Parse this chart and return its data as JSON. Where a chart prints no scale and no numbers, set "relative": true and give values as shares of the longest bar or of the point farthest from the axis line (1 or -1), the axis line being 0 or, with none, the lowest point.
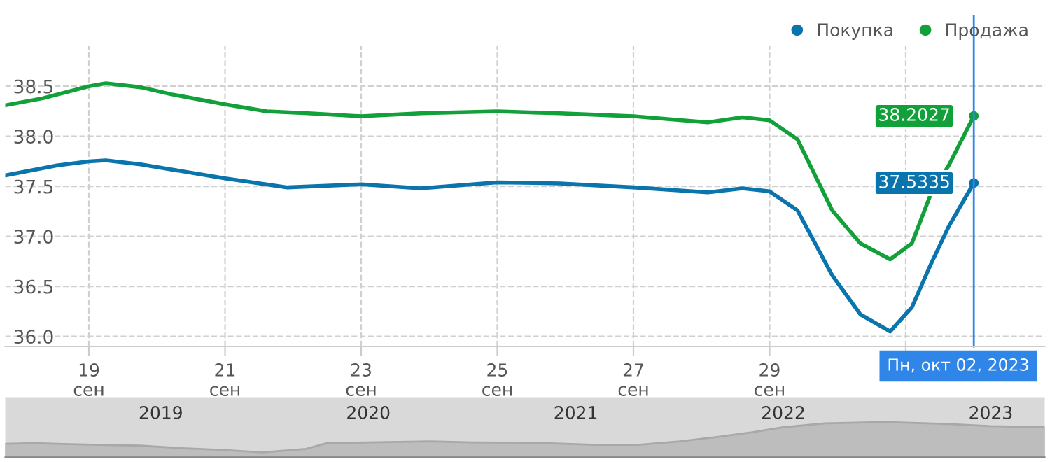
{
  "chart_data": [
    {
      "type": "line",
      "xlim": [
        "2023-09-17T18:30",
        "2023-10-03T01:00"
      ],
      "ylim": [
        35.9,
        38.9
      ],
      "xticks": [
        {
          "value": "2023-09-19",
          "label": "19\nсен"
        },
        {
          "value": "2023-09-21",
          "label": "21\nсен"
        },
        {
          "value": "2023-09-23",
          "label": "23\nсен"
        },
        {
          "value": "2023-09-25",
          "label": "25\nсен"
        },
        {
          "value": "2023-09-27",
          "label": "27\nсен"
        },
        {
          "value": "2023-09-29",
          "label": "29\nсен"
        },
        {
          "value": "2023-10-01",
          "label": null
        }
      ],
      "yticks": [
        {
          "value": 36,
          "label": "36.0"
        },
        {
          "value": 36.5,
          "label": "36.5"
        },
        {
          "value": 37,
          "label": "37.0"
        },
        {
          "value": 37.5,
          "label": "37.5"
        },
        {
          "value": 38,
          "label": "38.0"
        },
        {
          "value": 38.5,
          "label": "38.5"
        }
      ],
      "grid": true,
      "legend": "top right",
      "marker": "none",
      "line_style": "solid",
      "series": [
        {
          "name": "Покупка",
          "color": "#0a74ac",
          "x": [
            "2023-09-17T18:30",
            "2023-09-18T12:45",
            "2023-09-19",
            "2023-09-19T06:00",
            "2023-09-19T18:15",
            "2023-09-21",
            "2023-09-21T22:00",
            "2023-09-23",
            "2023-09-23T21:00",
            "2023-09-25",
            "2023-09-25T22:00",
            "2023-09-27",
            "2023-09-28T02:10",
            "2023-09-28T14:25",
            "2023-09-29",
            "2023-09-29T09:50",
            "2023-09-29T22:05",
            "2023-09-30T08:00",
            "2023-09-30T18:30",
            "2023-10-01T02:10",
            "2023-10-01T08:40",
            "2023-10-01T15:10",
            "2023-10-02"
          ],
          "values": [
            37.61,
            37.71,
            37.75,
            37.76,
            37.72,
            37.58,
            37.49,
            37.52,
            37.48,
            37.54,
            37.53,
            37.49,
            37.44,
            37.48,
            37.45,
            37.26,
            36.61,
            36.22,
            36.05,
            36.29,
            36.71,
            37.1,
            37.5335
          ],
          "value_labels": [
            null,
            null,
            null,
            null,
            null,
            null,
            null,
            null,
            null,
            null,
            null,
            null,
            null,
            null,
            null,
            null,
            null,
            null,
            null,
            null,
            null,
            null,
            "37.5335"
          ]
        },
        {
          "name": "Продажа",
          "color": "#12a03a",
          "x": [
            "2023-09-17T18:30",
            "2023-09-18T07:45",
            "2023-09-19",
            "2023-09-19T06:00",
            "2023-09-19T18:15",
            "2023-09-20T05:00",
            "2023-09-21",
            "2023-09-21T14:40",
            "2023-09-22T05:20",
            "2023-09-23",
            "2023-09-23T21:00",
            "2023-09-25",
            "2023-09-25T22:00",
            "2023-09-27",
            "2023-09-28T02:10",
            "2023-09-28T14:25",
            "2023-09-29",
            "2023-09-29T09:50",
            "2023-09-29T22:05",
            "2023-09-30T08:00",
            "2023-09-30T18:30",
            "2023-10-01T02:10",
            "2023-10-01T08:40",
            "2023-10-01T15:10",
            "2023-10-02"
          ],
          "values": [
            38.31,
            38.38,
            38.5,
            38.53,
            38.49,
            38.42,
            38.32,
            38.25,
            38.23,
            38.2,
            38.23,
            38.25,
            38.23,
            38.2,
            38.14,
            38.19,
            38.16,
            37.97,
            37.26,
            36.93,
            36.77,
            36.93,
            37.41,
            37.71,
            38.2027
          ],
          "value_labels": [
            null,
            null,
            null,
            null,
            null,
            null,
            null,
            null,
            null,
            null,
            null,
            null,
            null,
            null,
            null,
            null,
            null,
            null,
            null,
            null,
            null,
            null,
            null,
            null,
            "38.2027"
          ]
        }
      ],
      "ref_lines": [
        {
          "axis": "x",
          "value": "2023-10-02",
          "label": "Пн, окт 02, 2023",
          "color": "#2f86e8"
        }
      ]
    },
    {
      "type": "area",
      "relative": true,
      "tick_labels": "x",
      "grid": false,
      "xticks": [
        {
          "value": 2019.5,
          "label": "2019"
        },
        {
          "value": 2020.5,
          "label": "2020"
        },
        {
          "value": 2021.5,
          "label": "2021"
        },
        {
          "value": 2022.5,
          "label": "2022"
        },
        {
          "value": 2023.5,
          "label": "2023"
        }
      ],
      "xlim": [
        2018.75,
        2023.76
      ],
      "series": [
        {
          "color": "#bdbdbd",
          "x": [
            2018.75,
            2018.9,
            2019.0,
            2019.2,
            2019.4,
            2019.6,
            2019.8,
            2019.99,
            2020.2,
            2020.3,
            2020.5,
            2020.8,
            2021.0,
            2021.3,
            2021.6,
            2021.8,
            2022.0,
            2022.2,
            2022.35,
            2022.5,
            2022.7,
            2023.0,
            2023.3,
            2023.5,
            2023.76
          ],
          "values": [
            0.38,
            0.4,
            0.38,
            0.35,
            0.33,
            0.26,
            0.21,
            0.14,
            0.24,
            0.4,
            0.42,
            0.45,
            0.42,
            0.41,
            0.35,
            0.35,
            0.45,
            0.59,
            0.71,
            0.85,
            0.96,
            1,
            0.94,
            0.88,
            0.85
          ]
        }
      ]
    }
  ]
}
